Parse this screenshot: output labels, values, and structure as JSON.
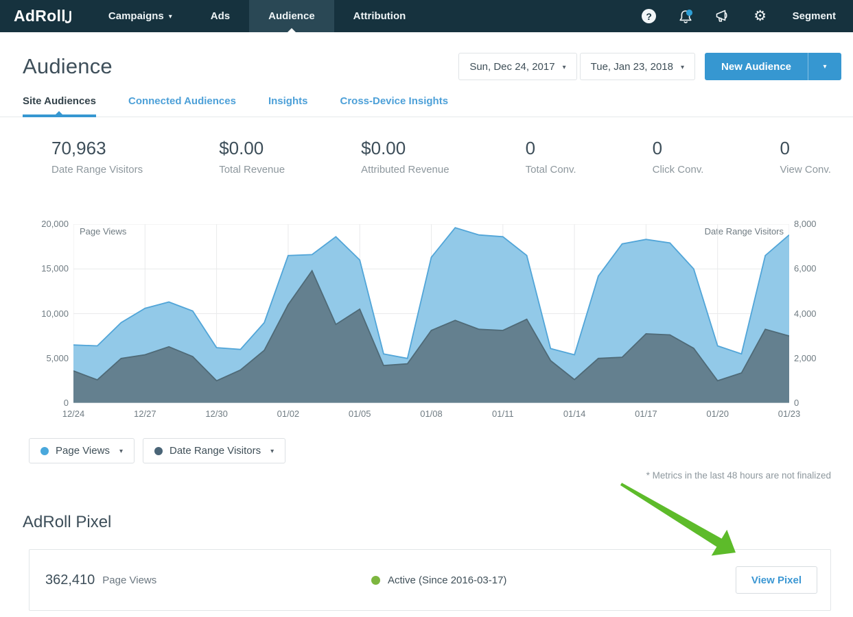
{
  "nav": {
    "logo": "AdRoll",
    "items": [
      {
        "label": "Campaigns",
        "has_caret": true,
        "active": false
      },
      {
        "label": "Ads",
        "has_caret": false,
        "active": false
      },
      {
        "label": "Audience",
        "has_caret": false,
        "active": true
      },
      {
        "label": "Attribution",
        "has_caret": false,
        "active": false
      }
    ],
    "icons": [
      "help-icon",
      "notifications-icon",
      "announcements-icon",
      "settings-icon"
    ],
    "notification_badge_color": "#2e9fd6",
    "account_label": "Segment"
  },
  "header": {
    "title": "Audience",
    "date_start": "Sun, Dec 24, 2017",
    "date_end": "Tue, Jan 23, 2018",
    "new_audience_label": "New Audience"
  },
  "tabs": [
    {
      "label": "Site Audiences",
      "active": true
    },
    {
      "label": "Connected Audiences",
      "active": false
    },
    {
      "label": "Insights",
      "active": false
    },
    {
      "label": "Cross-Device Insights",
      "active": false
    }
  ],
  "stats": [
    {
      "value": "70,963",
      "label": "Date Range Visitors"
    },
    {
      "value": "$0.00",
      "label": "Total Revenue"
    },
    {
      "value": "$0.00",
      "label": "Attributed Revenue"
    },
    {
      "value": "0",
      "label": "Total Conv."
    },
    {
      "value": "0",
      "label": "Click Conv."
    },
    {
      "value": "0",
      "label": "View Conv."
    }
  ],
  "chart_data": {
    "type": "area",
    "x": [
      "12/24",
      "12/25",
      "12/26",
      "12/27",
      "12/28",
      "12/29",
      "12/30",
      "12/31",
      "01/01",
      "01/02",
      "01/03",
      "01/04",
      "01/05",
      "01/06",
      "01/07",
      "01/08",
      "01/09",
      "01/10",
      "01/11",
      "01/12",
      "01/13",
      "01/14",
      "01/15",
      "01/16",
      "01/17",
      "01/18",
      "01/19",
      "01/20",
      "01/21",
      "01/22",
      "01/23"
    ],
    "x_tick_labels": [
      "12/24",
      "12/27",
      "12/30",
      "01/02",
      "01/05",
      "01/08",
      "01/11",
      "01/14",
      "01/17",
      "01/20",
      "01/23"
    ],
    "x_tick_interval": 3,
    "series": [
      {
        "name": "Page Views",
        "axis": "left",
        "fill_color": "#92c9e8",
        "line_color": "#51a5d8",
        "values": [
          6500,
          6400,
          9000,
          10600,
          11300,
          10300,
          6200,
          6000,
          9000,
          16500,
          16600,
          18600,
          16000,
          5500,
          5000,
          16300,
          19600,
          18800,
          18600,
          16500,
          6100,
          5400,
          14200,
          17800,
          18300,
          17900,
          15000,
          6400,
          5500,
          16500,
          18800
        ]
      },
      {
        "name": "Date Range Visitors",
        "axis": "right",
        "fill_color": "#64808f",
        "line_color": "#4f6a77",
        "values": [
          1440,
          1040,
          2000,
          2160,
          2520,
          2080,
          1000,
          1480,
          2360,
          4400,
          5920,
          3520,
          4200,
          1680,
          1760,
          3250,
          3700,
          3300,
          3250,
          3750,
          1900,
          1050,
          2000,
          2050,
          3100,
          3050,
          2450,
          1000,
          1350,
          3300,
          3000
        ]
      }
    ],
    "left_axis": {
      "title": "Page Views",
      "min": 0,
      "max": 20000,
      "tick_labels": [
        "20,000",
        "15,000",
        "10,000",
        "5,000",
        "0"
      ]
    },
    "right_axis": {
      "title": "Date Range Visitors",
      "min": 0,
      "max": 8000,
      "tick_labels": [
        "8,000",
        "6,000",
        "4,000",
        "2,000",
        "0"
      ]
    },
    "grid": true,
    "legend_position": "bottom-left"
  },
  "legend": [
    {
      "label": "Page Views",
      "color": "#4aa8dc"
    },
    {
      "label": "Date Range Visitors",
      "color": "#4a6577"
    }
  ],
  "footnote": "* Metrics in the last 48 hours are not finalized",
  "pixel_section": {
    "title": "AdRoll Pixel",
    "page_views_value": "362,410",
    "page_views_label": "Page Views",
    "status_text": "Active (Since 2016-03-17)",
    "status_color": "#7db63f",
    "view_pixel_label": "View Pixel"
  },
  "annotation": {
    "arrow_color": "#5dbb2a"
  }
}
